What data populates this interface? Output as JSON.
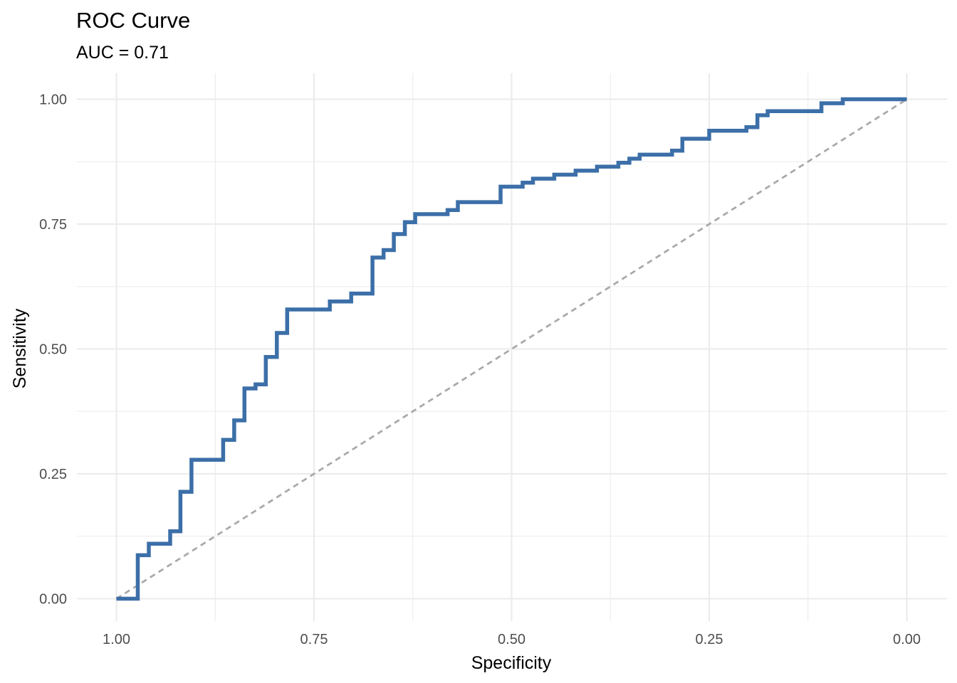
{
  "chart_data": {
    "type": "line",
    "title": "ROC Curve",
    "subtitle": "AUC = 0.71",
    "xlabel": "Specificity",
    "ylabel": "Sensitivity",
    "x_reversed": true,
    "xlim": [
      1.0,
      0.0
    ],
    "ylim": [
      0.0,
      1.0
    ],
    "x_ticks": [
      1.0,
      0.75,
      0.5,
      0.25,
      0.0
    ],
    "x_tick_labels": [
      "1.00",
      "0.75",
      "0.50",
      "0.25",
      "0.00"
    ],
    "y_ticks": [
      0.0,
      0.25,
      0.5,
      0.75,
      1.0
    ],
    "y_tick_labels": [
      "0.00",
      "0.25",
      "0.50",
      "0.75",
      "1.00"
    ],
    "grid": true,
    "legend": "none",
    "curve_color": "#3C6FA8",
    "reference_color": "#AAAAAA",
    "series": [
      {
        "style": "step",
        "specificity": [
          1.0,
          0.973,
          0.973,
          0.959,
          0.959,
          0.932,
          0.932,
          0.919,
          0.919,
          0.905,
          0.905,
          0.865,
          0.865,
          0.851,
          0.851,
          0.838,
          0.838,
          0.824,
          0.824,
          0.811,
          0.811,
          0.797,
          0.797,
          0.784,
          0.784,
          0.73,
          0.73,
          0.703,
          0.703,
          0.676,
          0.676,
          0.662,
          0.662,
          0.649,
          0.649,
          0.635,
          0.635,
          0.622,
          0.622,
          0.581,
          0.581,
          0.568,
          0.568,
          0.514,
          0.514,
          0.486,
          0.486,
          0.473,
          0.473,
          0.446,
          0.446,
          0.419,
          0.419,
          0.392,
          0.392,
          0.365,
          0.365,
          0.351,
          0.351,
          0.338,
          0.338,
          0.297,
          0.297,
          0.284,
          0.284,
          0.25,
          0.25,
          0.203,
          0.203,
          0.189,
          0.189,
          0.176,
          0.176,
          0.108,
          0.108,
          0.081,
          0.081,
          0.0
        ],
        "sensitivity": [
          0.0,
          0.0,
          0.087,
          0.087,
          0.11,
          0.11,
          0.135,
          0.135,
          0.214,
          0.214,
          0.278,
          0.278,
          0.318,
          0.318,
          0.357,
          0.357,
          0.421,
          0.421,
          0.429,
          0.429,
          0.484,
          0.484,
          0.532,
          0.532,
          0.579,
          0.579,
          0.595,
          0.595,
          0.611,
          0.611,
          0.683,
          0.683,
          0.698,
          0.698,
          0.73,
          0.73,
          0.754,
          0.754,
          0.77,
          0.77,
          0.778,
          0.778,
          0.794,
          0.794,
          0.825,
          0.825,
          0.833,
          0.833,
          0.841,
          0.841,
          0.849,
          0.849,
          0.857,
          0.857,
          0.865,
          0.865,
          0.873,
          0.873,
          0.881,
          0.881,
          0.889,
          0.889,
          0.897,
          0.897,
          0.921,
          0.921,
          0.937,
          0.937,
          0.944,
          0.944,
          0.968,
          0.968,
          0.976,
          0.976,
          0.992,
          0.992,
          1.0,
          1.0
        ]
      },
      {
        "style": "dashed",
        "specificity": [
          1.0,
          0.0
        ],
        "sensitivity": [
          0.0,
          1.0
        ]
      }
    ]
  }
}
